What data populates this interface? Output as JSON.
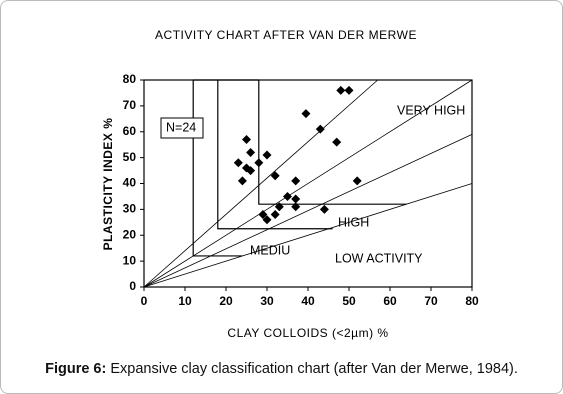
{
  "chart_data": {
    "type": "scatter",
    "title": "ACTIVITY CHART AFTER VAN DER MERWE",
    "x_label": "CLAY COLLOIDS  (<2µm)  %",
    "y_label": "PLASTICITY INDEX  %",
    "annotations": [
      "N=24",
      "VERY HIGH",
      "HIGH",
      "MEDIU",
      "LOW  ACTIVITY"
    ],
    "color": "#000000",
    "x": [
      25,
      26,
      23,
      25,
      26,
      28,
      30,
      24,
      32,
      37,
      39.5,
      43,
      48,
      50,
      47,
      52,
      35,
      37,
      37,
      33,
      44,
      29,
      30,
      32
    ],
    "y": [
      57,
      52,
      48,
      46,
      45,
      48,
      51,
      41,
      43,
      41,
      67,
      61,
      76,
      76,
      56,
      41,
      35,
      34,
      31,
      31,
      30,
      28,
      26,
      28
    ],
    "activity_lines": [
      {
        "x": [
          0,
          57
        ],
        "y": [
          0,
          80
        ]
      },
      {
        "x": [
          0,
          80
        ],
        "y": [
          0,
          80
        ]
      },
      {
        "x": [
          0,
          80
        ],
        "y": [
          0,
          59
        ]
      },
      {
        "x": [
          0,
          80
        ],
        "y": [
          0,
          40
        ]
      }
    ],
    "zone_lines": [
      {
        "x": [
          12,
          12,
          24
        ],
        "y": [
          80,
          12,
          12
        ]
      },
      {
        "x": [
          18,
          18,
          46
        ],
        "y": [
          80,
          22.5,
          22.5
        ]
      },
      {
        "x": [
          28,
          28,
          64
        ],
        "y": [
          80,
          32,
          32
        ]
      },
      {
        "x": [
          12,
          28
        ],
        "y": [
          80,
          80
        ]
      }
    ],
    "xlim": [
      0,
      80
    ],
    "ylim": [
      0,
      80
    ],
    "xticks": [
      0,
      10,
      20,
      30,
      40,
      50,
      60,
      70,
      80
    ],
    "yticks": [
      0,
      10,
      20,
      30,
      40,
      50,
      60,
      70,
      80
    ]
  },
  "caption": {
    "label": "Figure 6:",
    "text": " Expansive clay classification chart (after Van der Merwe, 1984)."
  }
}
